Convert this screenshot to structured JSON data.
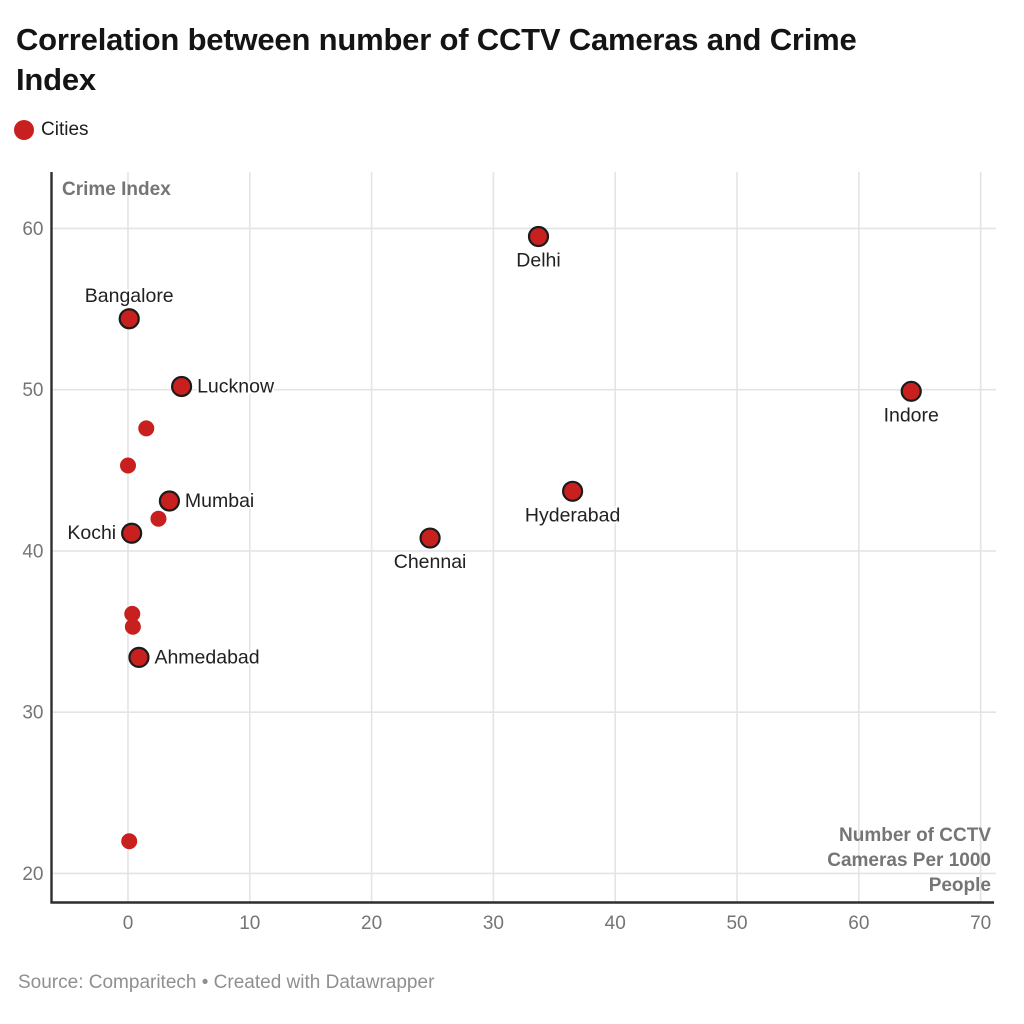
{
  "header": {
    "title": "Correlation between number of CCTV Cameras and Crime Index"
  },
  "legend": {
    "items": [
      {
        "label": "Cities",
        "color": "#c8201f"
      }
    ]
  },
  "footer": {
    "text": "Source: Comparitech • Created with Datawrapper"
  },
  "chart_data": {
    "type": "scatter",
    "title": "Correlation between number of CCTV Cameras and Crime Index",
    "xlabel": "Number of CCTV Cameras Per 1000 People",
    "xlabel_lines": [
      "Number of CCTV",
      "Cameras Per 1000",
      "People"
    ],
    "ylabel": "Crime Index",
    "xlim": [
      -6.28,
      71.26
    ],
    "ylim": [
      18.2,
      63.5
    ],
    "xticks": [
      0,
      10,
      20,
      30,
      40,
      50,
      60,
      70
    ],
    "yticks": [
      20,
      30,
      40,
      50,
      60
    ],
    "grid": true,
    "legend_position": "top-left",
    "series": [
      {
        "name": "Cities",
        "color": "#c8201f",
        "points": [
          {
            "city": "Delhi",
            "x": 33.7,
            "y": 59.5,
            "label_pos": "below"
          },
          {
            "city": "Bangalore",
            "x": 0.1,
            "y": 54.4,
            "label_pos": "above"
          },
          {
            "city": "Lucknow",
            "x": 4.4,
            "y": 50.2,
            "label_pos": "right"
          },
          {
            "city": "Indore",
            "x": 64.3,
            "y": 49.9,
            "label_pos": "below"
          },
          {
            "city": "",
            "x": 1.5,
            "y": 47.6
          },
          {
            "city": "",
            "x": 0.0,
            "y": 45.3
          },
          {
            "city": "Hyderabad",
            "x": 36.5,
            "y": 43.7,
            "label_pos": "below"
          },
          {
            "city": "Mumbai",
            "x": 3.4,
            "y": 43.1,
            "label_pos": "right"
          },
          {
            "city": "",
            "x": 2.5,
            "y": 42.0
          },
          {
            "city": "Kochi",
            "x": 0.3,
            "y": 41.1,
            "label_pos": "left"
          },
          {
            "city": "Chennai",
            "x": 24.8,
            "y": 40.8,
            "label_pos": "below"
          },
          {
            "city": "",
            "x": 0.35,
            "y": 36.1
          },
          {
            "city": "",
            "x": 0.4,
            "y": 35.3
          },
          {
            "city": "Ahmedabad",
            "x": 0.9,
            "y": 33.4,
            "label_pos": "right"
          },
          {
            "city": "",
            "x": 0.1,
            "y": 22.0
          }
        ]
      }
    ],
    "colors": {
      "point_fill": "#c8201f",
      "point_stroke": "#1b1b1b",
      "grid": "#e4e4e4",
      "axis": "#2e2e2e",
      "tick_label": "#757575",
      "axis_title": "#757575",
      "city_label": "#212121",
      "halo": "#ffffff"
    }
  }
}
